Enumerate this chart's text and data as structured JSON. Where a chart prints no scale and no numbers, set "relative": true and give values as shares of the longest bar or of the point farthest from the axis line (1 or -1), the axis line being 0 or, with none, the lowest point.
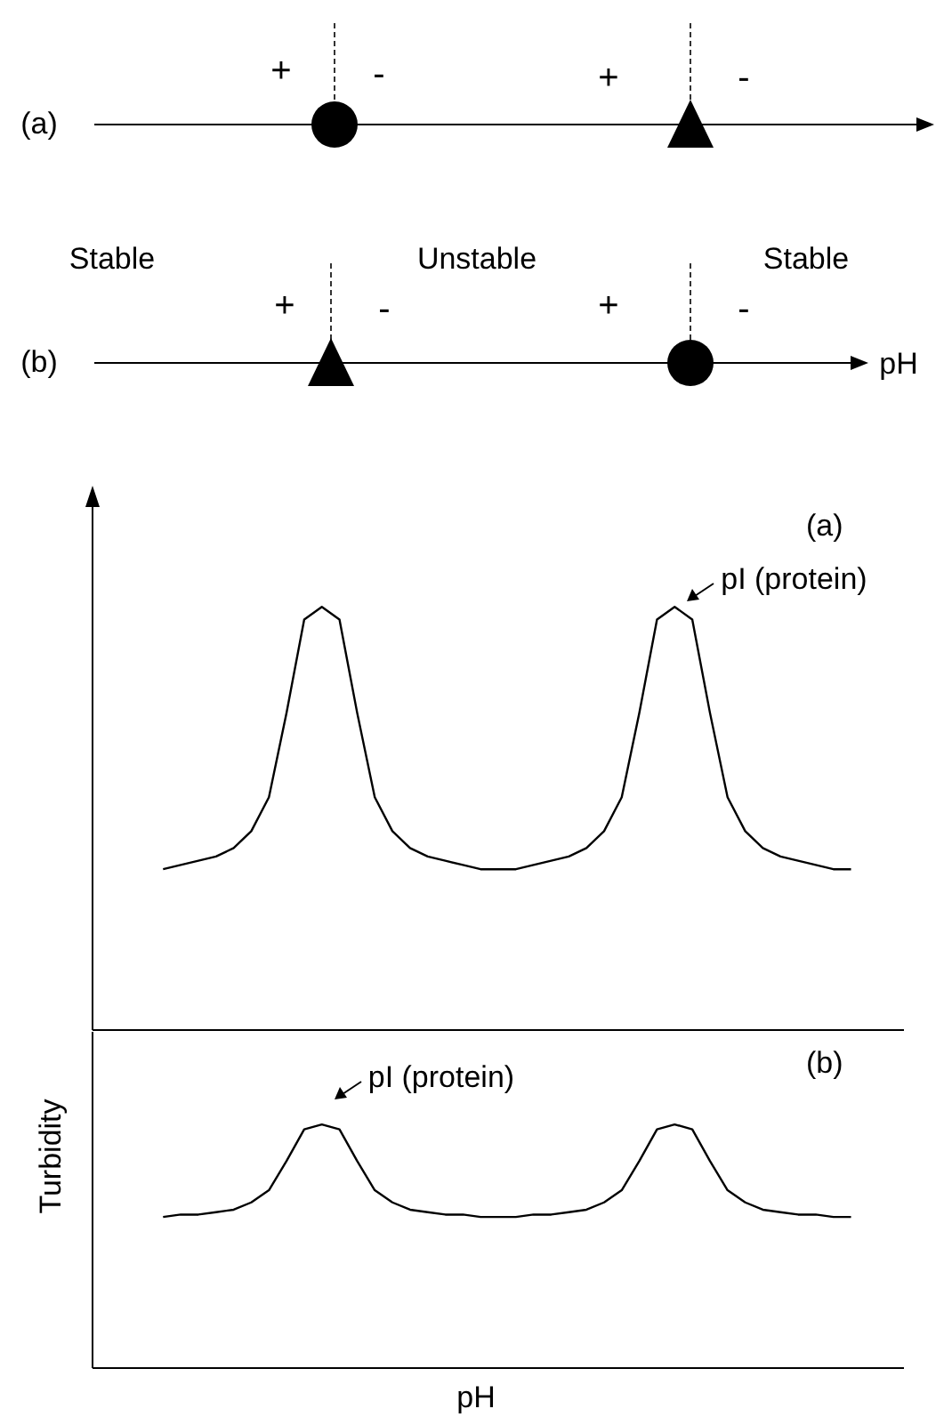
{
  "chart_data": [
    {
      "type": "other",
      "xlabel": "pH",
      "annotations": [
        "(a)",
        "(b)",
        "Stable",
        "Unstable",
        "Stable",
        "+",
        "-",
        "+",
        "-",
        "+",
        "-",
        "+",
        "-"
      ]
    },
    {
      "type": "line",
      "relative": true,
      "legend": false,
      "grid": false,
      "marker": "none",
      "ylabel": "Turbidity",
      "annotations": [
        "(a)",
        "pI (protein)"
      ],
      "categories": [
        null,
        null,
        null,
        null,
        null,
        null,
        null,
        null,
        null,
        null,
        null,
        null,
        null,
        null,
        null,
        null,
        null,
        null,
        null,
        null,
        null,
        null,
        null,
        null,
        null,
        null,
        null,
        null,
        null,
        null,
        null,
        null,
        null,
        null,
        null,
        null,
        null,
        null,
        null,
        null,
        null,
        null,
        null,
        null,
        null,
        null,
        null
      ],
      "series": [
        {
          "color": "#000000",
          "values": [
            null,
            null,
            null,
            null,
            0.38,
            0.39,
            0.4,
            0.41,
            0.43,
            0.47,
            0.55,
            0.75,
            0.97,
            1,
            0.97,
            0.75,
            0.55,
            0.47,
            0.43,
            0.41,
            0.4,
            0.39,
            0.38,
            0.38,
            0.38,
            0.39,
            0.4,
            0.41,
            0.43,
            0.47,
            0.55,
            0.75,
            0.97,
            1,
            0.97,
            0.75,
            0.55,
            0.47,
            0.43,
            0.41,
            0.4,
            0.39,
            0.38,
            0.38,
            null,
            null,
            null
          ]
        }
      ]
    },
    {
      "type": "line",
      "relative": true,
      "legend": false,
      "grid": false,
      "marker": "none",
      "xlabel": "pH",
      "annotations": [
        "(b)",
        "pI (protein)"
      ],
      "categories": [
        null,
        null,
        null,
        null,
        null,
        null,
        null,
        null,
        null,
        null,
        null,
        null,
        null,
        null,
        null,
        null,
        null,
        null,
        null,
        null,
        null,
        null,
        null,
        null,
        null,
        null,
        null,
        null,
        null,
        null,
        null,
        null,
        null,
        null,
        null,
        null,
        null,
        null,
        null,
        null,
        null,
        null,
        null,
        null,
        null,
        null,
        null
      ],
      "series": [
        {
          "color": "#000000",
          "values": [
            null,
            null,
            null,
            null,
            0.62,
            0.63,
            0.63,
            0.64,
            0.65,
            0.68,
            0.73,
            0.85,
            0.98,
            1,
            0.98,
            0.85,
            0.73,
            0.68,
            0.65,
            0.64,
            0.63,
            0.63,
            0.62,
            0.62,
            0.62,
            0.63,
            0.63,
            0.64,
            0.65,
            0.68,
            0.73,
            0.85,
            0.98,
            1,
            0.98,
            0.85,
            0.73,
            0.68,
            0.65,
            0.64,
            0.63,
            0.63,
            0.62,
            0.62,
            null,
            null,
            null
          ]
        }
      ]
    }
  ]
}
